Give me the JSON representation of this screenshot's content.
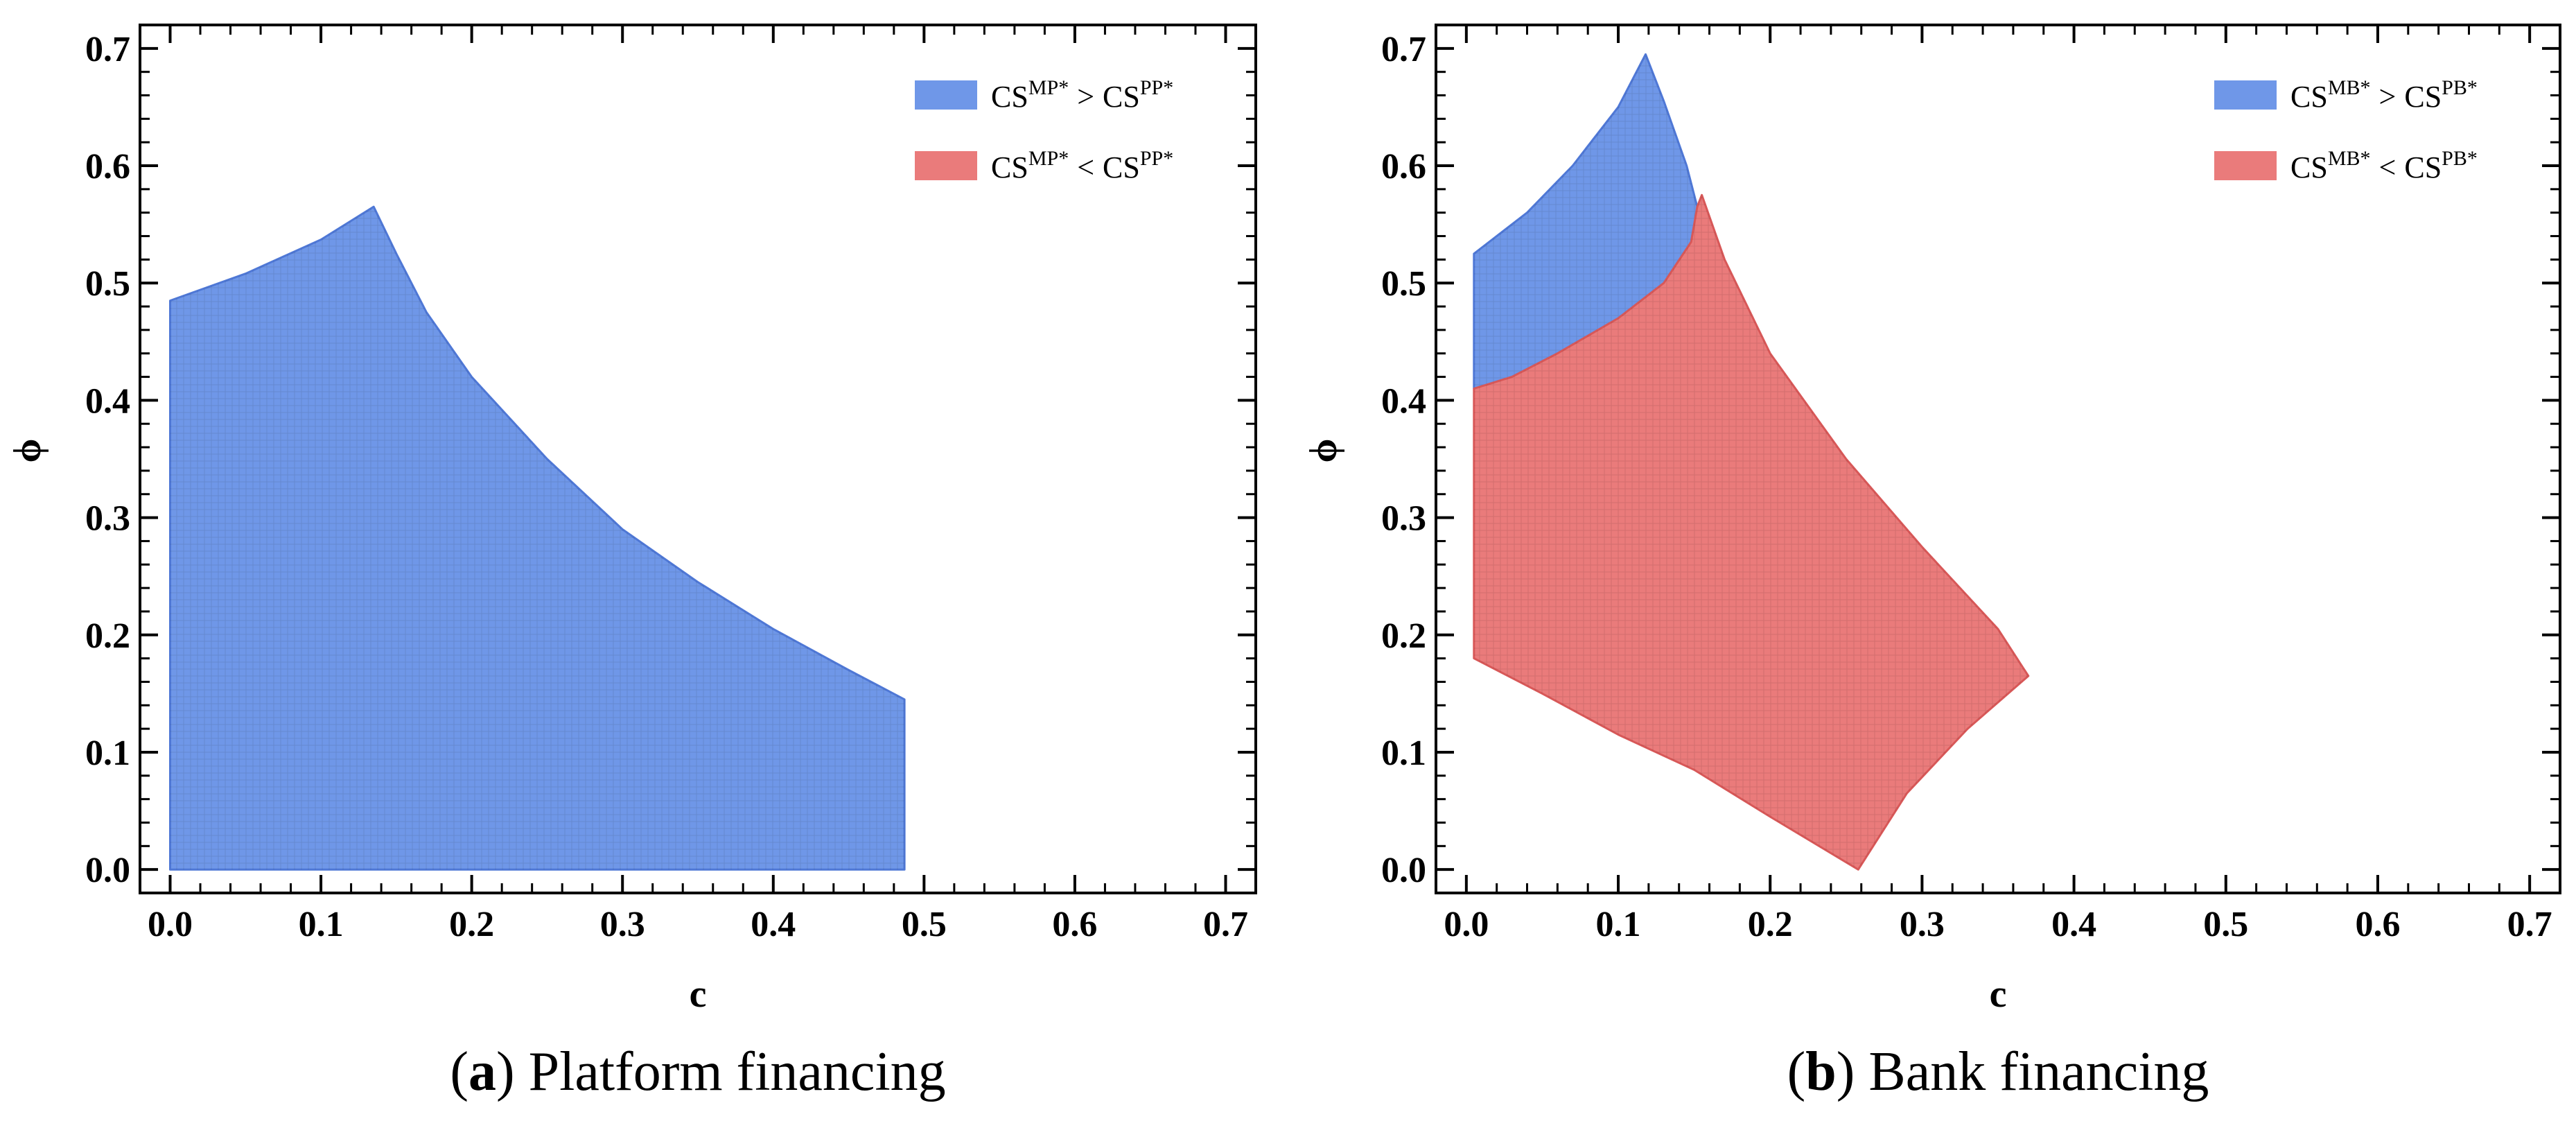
{
  "colors": {
    "blue": "#6f97e8",
    "blue_edge": "#4f78d6",
    "red": "#ea7b7b",
    "red_edge": "#d85858",
    "axis": "#000000"
  },
  "chart_data": [
    {
      "type": "area",
      "caption": {
        "letter": "a",
        "text": "Platform financing"
      },
      "xlabel": "c",
      "ylabel": "ϕ",
      "xlim": [
        -0.02,
        0.72
      ],
      "ylim": [
        -0.02,
        0.72
      ],
      "xticks": [
        "0.0",
        "0.1",
        "0.2",
        "0.3",
        "0.4",
        "0.5",
        "0.6",
        "0.7"
      ],
      "yticks": [
        "0.0",
        "0.1",
        "0.2",
        "0.3",
        "0.4",
        "0.5",
        "0.6",
        "0.7"
      ],
      "legend_position": "top-right",
      "series": [
        {
          "legend": {
            "base1": "CS",
            "sup1": "MP*",
            "op": ">",
            "base2": "CS",
            "sup2": "PP*"
          },
          "color": "blue",
          "points": [
            [
              0.0,
              0.0
            ],
            [
              0.0,
              0.485
            ],
            [
              0.05,
              0.508
            ],
            [
              0.1,
              0.537
            ],
            [
              0.135,
              0.565
            ],
            [
              0.15,
              0.525
            ],
            [
              0.17,
              0.475
            ],
            [
              0.2,
              0.42
            ],
            [
              0.25,
              0.35
            ],
            [
              0.3,
              0.29
            ],
            [
              0.35,
              0.245
            ],
            [
              0.4,
              0.205
            ],
            [
              0.45,
              0.17
            ],
            [
              0.487,
              0.145
            ],
            [
              0.487,
              0.0
            ]
          ]
        },
        {
          "legend": {
            "base1": "CS",
            "sup1": "MP*",
            "op": "<",
            "base2": "CS",
            "sup2": "PP*"
          },
          "color": "red",
          "points": []
        }
      ]
    },
    {
      "type": "area",
      "caption": {
        "letter": "b",
        "text": "Bank financing"
      },
      "xlabel": "c",
      "ylabel": "ϕ",
      "xlim": [
        -0.02,
        0.72
      ],
      "ylim": [
        -0.02,
        0.72
      ],
      "xticks": [
        "0.0",
        "0.1",
        "0.2",
        "0.3",
        "0.4",
        "0.5",
        "0.6",
        "0.7"
      ],
      "yticks": [
        "0.0",
        "0.1",
        "0.2",
        "0.3",
        "0.4",
        "0.5",
        "0.6",
        "0.7"
      ],
      "legend_position": "top-right",
      "series": [
        {
          "legend": {
            "base1": "CS",
            "sup1": "MB*",
            "op": ">",
            "base2": "CS",
            "sup2": "PB*"
          },
          "color": "blue",
          "points": [
            [
              0.005,
              0.41
            ],
            [
              0.005,
              0.525
            ],
            [
              0.04,
              0.56
            ],
            [
              0.07,
              0.6
            ],
            [
              0.1,
              0.65
            ],
            [
              0.118,
              0.695
            ],
            [
              0.13,
              0.655
            ],
            [
              0.145,
              0.6
            ],
            [
              0.152,
              0.565
            ],
            [
              0.148,
              0.535
            ],
            [
              0.13,
              0.5
            ],
            [
              0.1,
              0.47
            ],
            [
              0.06,
              0.44
            ],
            [
              0.03,
              0.42
            ]
          ]
        },
        {
          "legend": {
            "base1": "CS",
            "sup1": "MB*",
            "op": "<",
            "base2": "CS",
            "sup2": "PB*"
          },
          "color": "red",
          "points": [
            [
              0.005,
              0.18
            ],
            [
              0.005,
              0.41
            ],
            [
              0.03,
              0.42
            ],
            [
              0.06,
              0.44
            ],
            [
              0.1,
              0.47
            ],
            [
              0.13,
              0.5
            ],
            [
              0.148,
              0.535
            ],
            [
              0.152,
              0.565
            ],
            [
              0.155,
              0.575
            ],
            [
              0.17,
              0.52
            ],
            [
              0.2,
              0.44
            ],
            [
              0.25,
              0.35
            ],
            [
              0.3,
              0.275
            ],
            [
              0.35,
              0.205
            ],
            [
              0.37,
              0.165
            ],
            [
              0.33,
              0.12
            ],
            [
              0.29,
              0.065
            ],
            [
              0.258,
              0.0
            ],
            [
              0.2,
              0.045
            ],
            [
              0.15,
              0.085
            ],
            [
              0.1,
              0.115
            ],
            [
              0.05,
              0.15
            ]
          ]
        }
      ]
    }
  ]
}
